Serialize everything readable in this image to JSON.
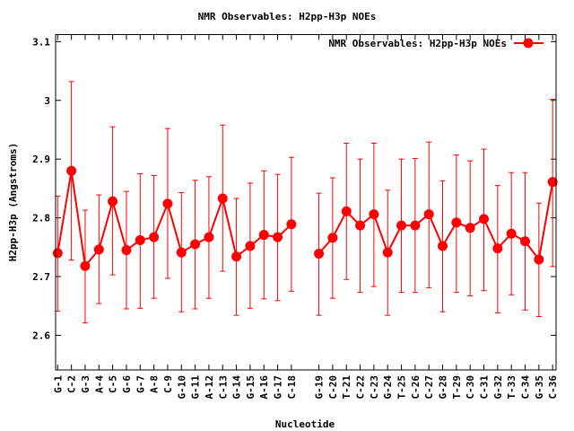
{
  "chart_data": {
    "type": "line",
    "title": "NMR Observables: H2pp-H3p NOEs",
    "xlabel": "Nucleotide",
    "ylabel": "H2pp-H3p (Angstroms)",
    "ylim": [
      2.541,
      3.112
    ],
    "xlim": [
      0.85,
      37.25
    ],
    "yticks": [
      "2.6",
      "2.7",
      "2.8",
      "2.9",
      "3",
      "3.1"
    ],
    "ytick_values": [
      2.6,
      2.7,
      2.8,
      2.9,
      3.0,
      3.1
    ],
    "grid": false,
    "legend_position": "top-right",
    "categories": [
      "G-1",
      "C-2",
      "G-3",
      "A-4",
      "C-5",
      "G-6",
      "G-7",
      "A-8",
      "C-9",
      "G-10",
      "G-11",
      "A-12",
      "C-13",
      "G-14",
      "G-15",
      "A-16",
      "G-17",
      "C-18",
      "G-19",
      "C-20",
      "T-21",
      "C-22",
      "C-23",
      "G-24",
      "T-25",
      "C-26",
      "C-27",
      "G-28",
      "T-29",
      "C-30",
      "C-31",
      "G-32",
      "T-33",
      "C-34",
      "G-35",
      "C-36"
    ],
    "x": [
      1,
      2,
      3,
      4,
      5,
      6,
      7,
      8,
      9,
      10,
      11,
      12,
      13,
      14,
      15,
      16,
      17,
      18,
      20,
      21,
      22,
      23,
      24,
      25,
      26,
      27,
      28,
      29,
      30,
      31,
      32,
      33,
      34,
      35,
      36,
      37
    ],
    "series": [
      {
        "name": "NMR Observables: H2pp-H3p NOEs",
        "color": "#ff0000",
        "segments": [
          [
            0,
            17
          ],
          [
            18,
            35
          ]
        ],
        "values": [
          2.74,
          2.88,
          2.718,
          2.746,
          2.828,
          2.745,
          2.762,
          2.767,
          2.824,
          2.741,
          2.755,
          2.767,
          2.833,
          2.734,
          2.752,
          2.771,
          2.767,
          2.789,
          2.739,
          2.766,
          2.811,
          2.787,
          2.806,
          2.741,
          2.787,
          2.787,
          2.806,
          2.752,
          2.792,
          2.783,
          2.798,
          2.748,
          2.773,
          2.76,
          2.729,
          2.861
        ],
        "err_high": [
          2.837,
          3.032,
          2.813,
          2.839,
          2.955,
          2.845,
          2.875,
          2.872,
          2.952,
          2.843,
          2.864,
          2.87,
          2.958,
          2.833,
          2.859,
          2.88,
          2.874,
          2.903,
          2.842,
          2.868,
          2.927,
          2.9,
          2.927,
          2.847,
          2.9,
          2.901,
          2.929,
          2.863,
          2.907,
          2.897,
          2.917,
          2.855,
          2.877,
          2.877,
          2.825,
          3.002
        ],
        "err_low": [
          2.641,
          2.728,
          2.621,
          2.654,
          2.703,
          2.645,
          2.646,
          2.663,
          2.697,
          2.64,
          2.645,
          2.663,
          2.709,
          2.634,
          2.646,
          2.662,
          2.659,
          2.675,
          2.634,
          2.663,
          2.695,
          2.673,
          2.683,
          2.634,
          2.673,
          2.673,
          2.681,
          2.64,
          2.673,
          2.667,
          2.676,
          2.638,
          2.669,
          2.643,
          2.632,
          2.717
        ]
      }
    ]
  }
}
